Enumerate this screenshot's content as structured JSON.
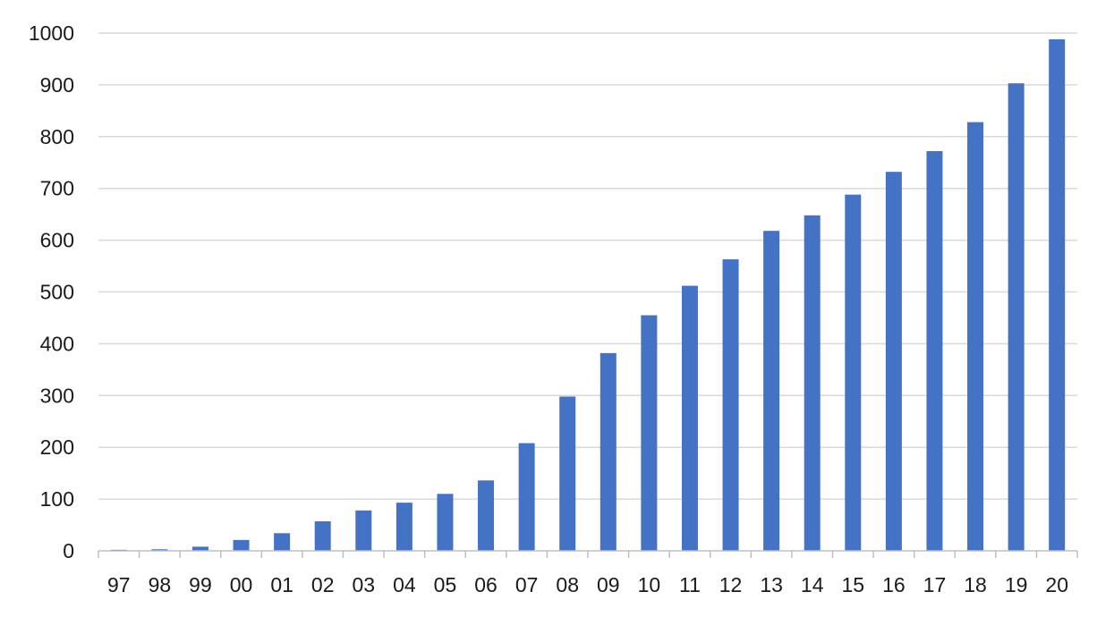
{
  "chart_data": {
    "type": "bar",
    "title": "",
    "xlabel": "",
    "ylabel": "",
    "categories": [
      "97",
      "98",
      "99",
      "00",
      "01",
      "02",
      "03",
      "04",
      "05",
      "06",
      "07",
      "08",
      "09",
      "10",
      "11",
      "12",
      "13",
      "14",
      "15",
      "16",
      "17",
      "18",
      "19",
      "20"
    ],
    "values": [
      2,
      3,
      8,
      21,
      34,
      57,
      78,
      93,
      110,
      136,
      208,
      298,
      382,
      455,
      512,
      563,
      618,
      648,
      688,
      732,
      772,
      828,
      903,
      988
    ],
    "ylim": [
      0,
      1000
    ],
    "yticks": [
      "0",
      "100",
      "200",
      "300",
      "400",
      "500",
      "600",
      "700",
      "800",
      "900",
      "1000"
    ],
    "grid": true,
    "legend": "none",
    "colors": {
      "bar": "#4472c4"
    }
  }
}
